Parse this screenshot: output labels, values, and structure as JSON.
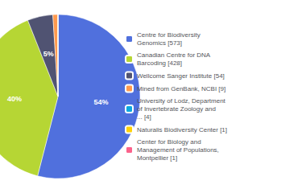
{
  "chart_data": {
    "type": "pie",
    "categories": [
      "Centre for Biodiversity\nGenomics [573]",
      "Canadian Centre for DNA\nBarcoding [428]",
      "Wellcome Sanger Institute [54]",
      "Mined from GenBank, NCBI [9]",
      "University of Lodz, Department\nof Invertebrate Zoology and\n... [4]",
      "Naturalis Biodiversity Center [1]",
      "Center for Biology and\nManagement of Populations,\nMontpellier [1]"
    ],
    "values": [
      54,
      40,
      5,
      1,
      0,
      0,
      0
    ],
    "value_labels": [
      "54%",
      "40%",
      "5%",
      null,
      null,
      null,
      null
    ],
    "data_labels": true,
    "legend": "right"
  }
}
